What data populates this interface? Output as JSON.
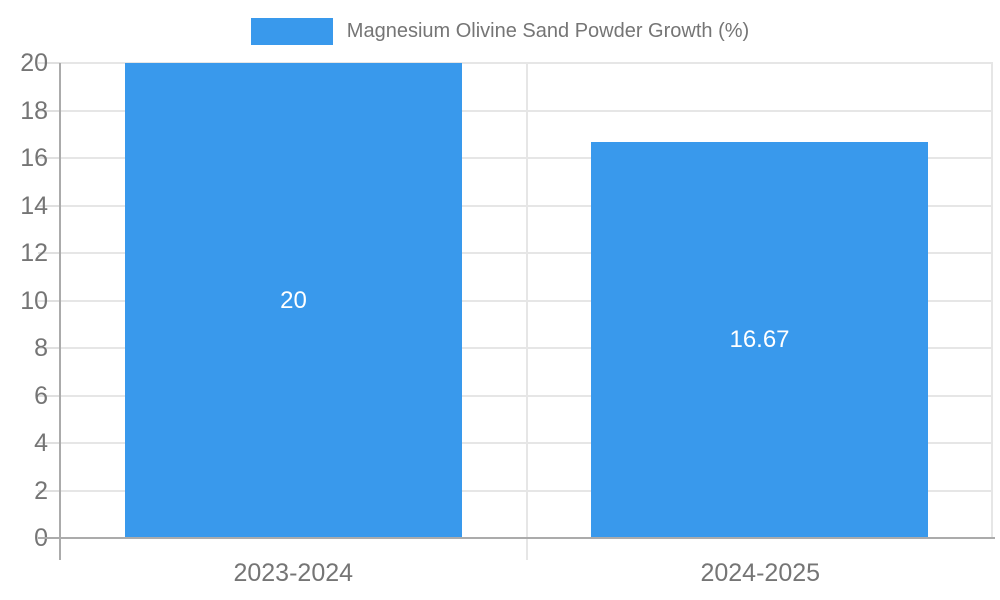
{
  "legend": {
    "label": "Magnesium Olivine Sand Powder Growth (%)"
  },
  "chart_data": {
    "type": "bar",
    "title": "Magnesium Olivine Sand Powder Growth (%)",
    "categories": [
      "2023-2024",
      "2024-2025"
    ],
    "values": [
      20,
      16.67
    ],
    "value_labels": [
      "20",
      "16.67"
    ],
    "xlabel": "",
    "ylabel": "",
    "ylim": [
      0,
      20
    ],
    "yticks": [
      0,
      2,
      4,
      6,
      8,
      10,
      12,
      14,
      16,
      18,
      20
    ],
    "grid": true,
    "legend_position": "top-center",
    "colors": {
      "bar": "#3999ec",
      "value_label": "#ffffff",
      "tick_label": "#757575",
      "legend_label": "#757575",
      "gridline": "#e6e6e6",
      "axis_line": "#ababab",
      "background": "#ffffff"
    }
  }
}
